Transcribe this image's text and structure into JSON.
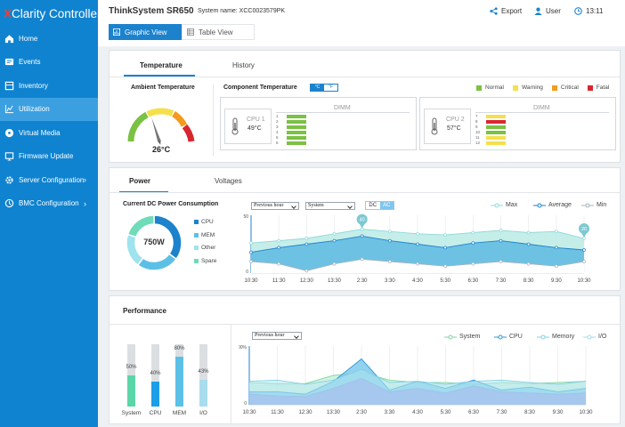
{
  "app": {
    "logo_x": "X",
    "logo_rest": "Clarity Controller"
  },
  "colors": {
    "sidebar": "#0f83d0",
    "accent": "#1c82cc",
    "normal": "#7bc143",
    "warning": "#f4e04d",
    "critical": "#f29b1e",
    "fatal": "#d9262e"
  },
  "sidebar": {
    "items": [
      {
        "label": "Home",
        "icon": "home-icon",
        "active": false,
        "chev": false
      },
      {
        "label": "Events",
        "icon": "events-icon",
        "active": false,
        "chev": false
      },
      {
        "label": "Inventory",
        "icon": "inventory-icon",
        "active": false,
        "chev": false
      },
      {
        "label": "Utilization",
        "icon": "utilization-icon",
        "active": true,
        "chev": false
      },
      {
        "label": "Virtual Media",
        "icon": "disc-icon",
        "active": false,
        "chev": false
      },
      {
        "label": "Firmware  Update",
        "icon": "firmware-icon",
        "active": false,
        "chev": false
      },
      {
        "label": "Server Configuration",
        "icon": "gear-icon",
        "active": false,
        "chev": true
      },
      {
        "label": "BMC Configuration",
        "icon": "bmc-icon",
        "active": false,
        "chev": true
      }
    ]
  },
  "header": {
    "title": "ThinkSystem SR650",
    "system_name": "System name: XCC0023579PK",
    "export_label": "Export",
    "user_label": "User",
    "time": "13:11"
  },
  "view_tabs": {
    "graphic": "Graphic View",
    "table": "Table View"
  },
  "temperature": {
    "tabs": [
      "Temperature",
      "History"
    ],
    "ambient_title": "Ambient Temperature",
    "ambient_value": "26°C",
    "gauge_fraction": 0.4,
    "component_title": "Component Temperature",
    "unit_c": "°C",
    "unit_f": "°F",
    "legend": [
      "Normal",
      "Warning",
      "Critical",
      "Fatal"
    ],
    "dimm_label": "DIMM",
    "cpus": [
      {
        "name": "CPU 1",
        "temp": "49°C",
        "dimms": [
          {
            "n": "1",
            "s": "normal"
          },
          {
            "n": "2",
            "s": "normal"
          },
          {
            "n": "3",
            "s": "normal"
          },
          {
            "n": "4",
            "s": "normal"
          },
          {
            "n": "5",
            "s": "normal"
          },
          {
            "n": "6",
            "s": "normal"
          }
        ]
      },
      {
        "name": "CPU 2",
        "temp": "57°C",
        "dimms": [
          {
            "n": "7",
            "s": "warning"
          },
          {
            "n": "8",
            "s": "fatal"
          },
          {
            "n": "9",
            "s": "normal"
          },
          {
            "n": "10",
            "s": "normal"
          },
          {
            "n": "11",
            "s": "warning"
          },
          {
            "n": "12",
            "s": "warning"
          }
        ]
      }
    ]
  },
  "power": {
    "tabs": [
      "Power",
      "Voltages"
    ],
    "title": "Current DC Power Consumption",
    "total": "750W",
    "donut": [
      {
        "name": "CPU",
        "value": 35,
        "color": "#1c82cc"
      },
      {
        "name": "MEM",
        "value": 25,
        "color": "#5cc0e6"
      },
      {
        "name": "Other",
        "value": 20,
        "color": "#9ee3ee"
      },
      {
        "name": "Spare",
        "value": 20,
        "color": "#6fdbb8"
      }
    ],
    "range_select": "Previous hour",
    "source_select": "System",
    "dc_label": "DC",
    "ac_label": "AC",
    "legend": {
      "max": "Max",
      "average": "Average",
      "min": "Min"
    }
  },
  "performance": {
    "title": "Performance",
    "range_select": "Previous hour",
    "bars": [
      {
        "label": "System",
        "pct": "50%",
        "value": 50,
        "color": "#5cd6a8"
      },
      {
        "label": "CPU",
        "pct": "40%",
        "value": 40,
        "color": "#1c9ee8"
      },
      {
        "label": "MEM",
        "pct": "80%",
        "value": 80,
        "color": "#5cc0e6"
      },
      {
        "label": "I/O",
        "pct": "43%",
        "value": 43,
        "color": "#a8ddee"
      }
    ],
    "legend": [
      "System",
      "CPU",
      "Memory",
      "I/O"
    ]
  },
  "chart_data": [
    {
      "type": "area",
      "x": [
        "10:30",
        "11:30",
        "12:30",
        "13:30",
        "2:30",
        "3:30",
        "4:30",
        "5:30",
        "6:30",
        "7:30",
        "8:30",
        "9:30",
        "10:30"
      ],
      "yticks": [
        "50",
        "0"
      ],
      "ylim": [
        0,
        50
      ],
      "markers": [
        {
          "x": "2:30",
          "label": "40"
        },
        {
          "x": "10:30",
          "label": "20"
        }
      ],
      "series": [
        {
          "name": "Max",
          "values": [
            26,
            28,
            30,
            34,
            38,
            36,
            34,
            33,
            35,
            37,
            35,
            36,
            30
          ]
        },
        {
          "name": "Average",
          "values": [
            18,
            22,
            25,
            28,
            32,
            28,
            25,
            22,
            26,
            28,
            25,
            22,
            20
          ]
        },
        {
          "name": "Min",
          "values": [
            10,
            8,
            2,
            8,
            12,
            10,
            8,
            6,
            8,
            10,
            8,
            6,
            10
          ]
        }
      ]
    },
    {
      "type": "area",
      "x": [
        "10:30",
        "11:30",
        "12:30",
        "13:30",
        "2:30",
        "3:30",
        "4:30",
        "5:30",
        "6:30",
        "7:30",
        "8:30",
        "9:30",
        "10:30"
      ],
      "yticks": [
        "100%",
        "0"
      ],
      "ylim": [
        0,
        100
      ],
      "series": [
        {
          "name": "System",
          "values": [
            38,
            36,
            36,
            50,
            55,
            42,
            38,
            38,
            35,
            38,
            36,
            38,
            40
          ]
        },
        {
          "name": "CPU",
          "values": [
            22,
            22,
            18,
            40,
            78,
            25,
            40,
            28,
            42,
            25,
            30,
            22,
            28
          ]
        },
        {
          "name": "Memory",
          "values": [
            40,
            42,
            35,
            42,
            60,
            38,
            40,
            35,
            40,
            42,
            38,
            35,
            40
          ]
        },
        {
          "name": "I/O",
          "values": [
            18,
            15,
            14,
            28,
            45,
            22,
            28,
            20,
            32,
            22,
            20,
            18,
            20
          ]
        }
      ]
    }
  ]
}
